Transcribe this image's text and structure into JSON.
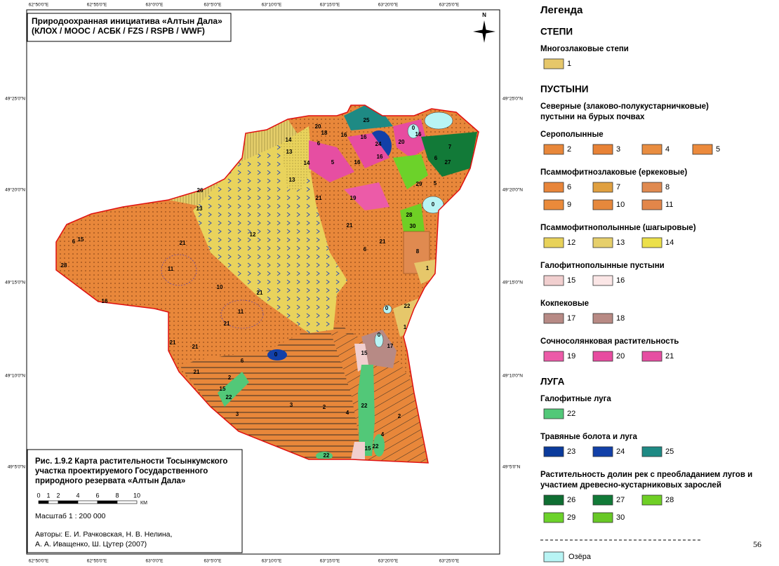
{
  "map": {
    "title": [
      "Природоохранная инициатива «Алтын Дала»",
      "(КЛОХ / МООС / АСБК / FZS / RSPB / WWF)"
    ],
    "north": "N",
    "longitudes": [
      "62°50'0\"E",
      "62°55'0\"E",
      "63°0'0\"E",
      "63°5'0\"E",
      "63°10'0\"E",
      "63°15'0\"E",
      "63°20'0\"E",
      "63°25'0\"E"
    ],
    "latitudes": [
      "49°25'0\"N",
      "49°20'0\"N",
      "49°15'0\"N",
      "49°10'0\"N",
      "49°5'0\"N"
    ],
    "region_labels": [
      "20",
      "18",
      "16",
      "16",
      "25",
      "0",
      "16",
      "20",
      "24",
      "16",
      "16",
      "5",
      "6",
      "14",
      "13",
      "14",
      "13",
      "26",
      "13",
      "12",
      "21",
      "19",
      "21",
      "21",
      "6",
      "8",
      "1",
      "28",
      "30",
      "29",
      "5",
      "27",
      "6",
      "7",
      "0",
      "21",
      "11",
      "10",
      "21",
      "11",
      "21",
      "16",
      "22",
      "0",
      "1",
      "15",
      "0",
      "17",
      "0",
      "2",
      "15",
      "22",
      "3",
      "3",
      "2",
      "4",
      "22",
      "2",
      "4",
      "22",
      "15",
      "22",
      "6",
      "15",
      "28",
      "21",
      "21",
      "6",
      "21"
    ],
    "caption": {
      "title": [
        "Рис. 1.9.2  Карта растительности Тосынкумского",
        "участка проектируемого Государственного",
        "природного резервата «Алтын Дала»"
      ],
      "scale_ticks": [
        "0",
        "1",
        "2",
        "4",
        "6",
        "8",
        "10"
      ],
      "scale_unit": "КМ",
      "scale": "Масштаб 1 : 200 000",
      "authors": [
        "Авторы: Е. И. Рачковская, Н. В. Нелина,",
        "А. А. Иващенко, Ш. Цутер (2007)"
      ]
    }
  },
  "legend": {
    "title": "Легенда",
    "sections": [
      {
        "heading": "СТЕПИ",
        "groups": [
          {
            "title": [
              "Многозлаковые степи"
            ],
            "rows": [
              [
                {
                  "label": "1",
                  "color": "#e6c76a"
                }
              ]
            ]
          }
        ]
      },
      {
        "heading": "ПУСТЫНИ",
        "groups": [
          {
            "title": [
              "Северные (злаково-полукустарничковые)",
              "пустыни на бурых почвах"
            ],
            "rows": []
          },
          {
            "title": [
              "Серополынные"
            ],
            "rows": [
              [
                {
                  "label": "2",
                  "color": "#e8873a"
                },
                {
                  "label": "3",
                  "color": "#e88236"
                },
                {
                  "label": "4",
                  "color": "#e98d40"
                },
                {
                  "label": "5",
                  "color": "#ec8a3c"
                }
              ]
            ]
          },
          {
            "title": [
              "Псаммофитнозлаковые (еркековые)"
            ],
            "rows": [
              [
                {
                  "label": "6",
                  "color": "#e8853a"
                },
                {
                  "label": "7",
                  "color": "#e0a040"
                },
                {
                  "label": "8",
                  "color": "#e08a50"
                }
              ],
              [
                {
                  "label": "9",
                  "color": "#ea8a3a"
                },
                {
                  "label": "10",
                  "color": "#e6883c"
                },
                {
                  "label": "11",
                  "color": "#e2864a"
                }
              ]
            ]
          },
          {
            "title": [
              "Псаммофитнополынные (шагыровые)"
            ],
            "rows": [
              [
                {
                  "label": "12",
                  "color": "#e8d25a"
                },
                {
                  "label": "13",
                  "color": "#e6cf6b"
                },
                {
                  "label": "14",
                  "color": "#ece04a"
                }
              ]
            ]
          },
          {
            "title": [
              "Галофитнополынные пустыни"
            ],
            "rows": [
              [
                {
                  "label": "15",
                  "color": "#f1cfcf"
                },
                {
                  "label": "16",
                  "color": "#fbe6e6"
                }
              ]
            ]
          },
          {
            "title": [
              "Кокпековые"
            ],
            "rows": [
              [
                {
                  "label": "17",
                  "color": "#b78a85"
                },
                {
                  "label": "18",
                  "color": "#b88a84"
                }
              ]
            ]
          },
          {
            "title": [
              "Сочносолянковая растительность"
            ],
            "rows": [
              [
                {
                  "label": "19",
                  "color": "#ec5ba8"
                },
                {
                  "label": "20",
                  "color": "#e74ca0"
                },
                {
                  "label": "21",
                  "color": "#e64ea2"
                }
              ]
            ]
          }
        ]
      },
      {
        "heading": "ЛУГА",
        "groups": [
          {
            "title": [
              "Галофитные луга"
            ],
            "rows": [
              [
                {
                  "label": "22",
                  "color": "#52c878"
                }
              ]
            ]
          },
          {
            "title": [
              "Травяные болота и луга"
            ],
            "rows": [
              [
                {
                  "label": "23",
                  "color": "#0b3b9c"
                },
                {
                  "label": "24",
                  "color": "#1240a8"
                },
                {
                  "label": "25",
                  "color": "#1e8a84"
                }
              ]
            ]
          },
          {
            "title": [
              "Растительность долин рек с преобладанием лугов и",
              "участием древесно-кустарниковых зарослей"
            ],
            "rows": [
              [
                {
                  "label": "26",
                  "color": "#0f6e32"
                },
                {
                  "label": "27",
                  "color": "#127a38"
                },
                {
                  "label": "28",
                  "color": "#6fcf25"
                }
              ],
              [
                {
                  "label": "29",
                  "color": "#6cd22a"
                },
                {
                  "label": "30",
                  "color": "#68c826"
                }
              ]
            ]
          }
        ]
      }
    ],
    "lakes": {
      "label": "Озёра",
      "color": "#b8f4f4"
    }
  },
  "page_number": "56"
}
